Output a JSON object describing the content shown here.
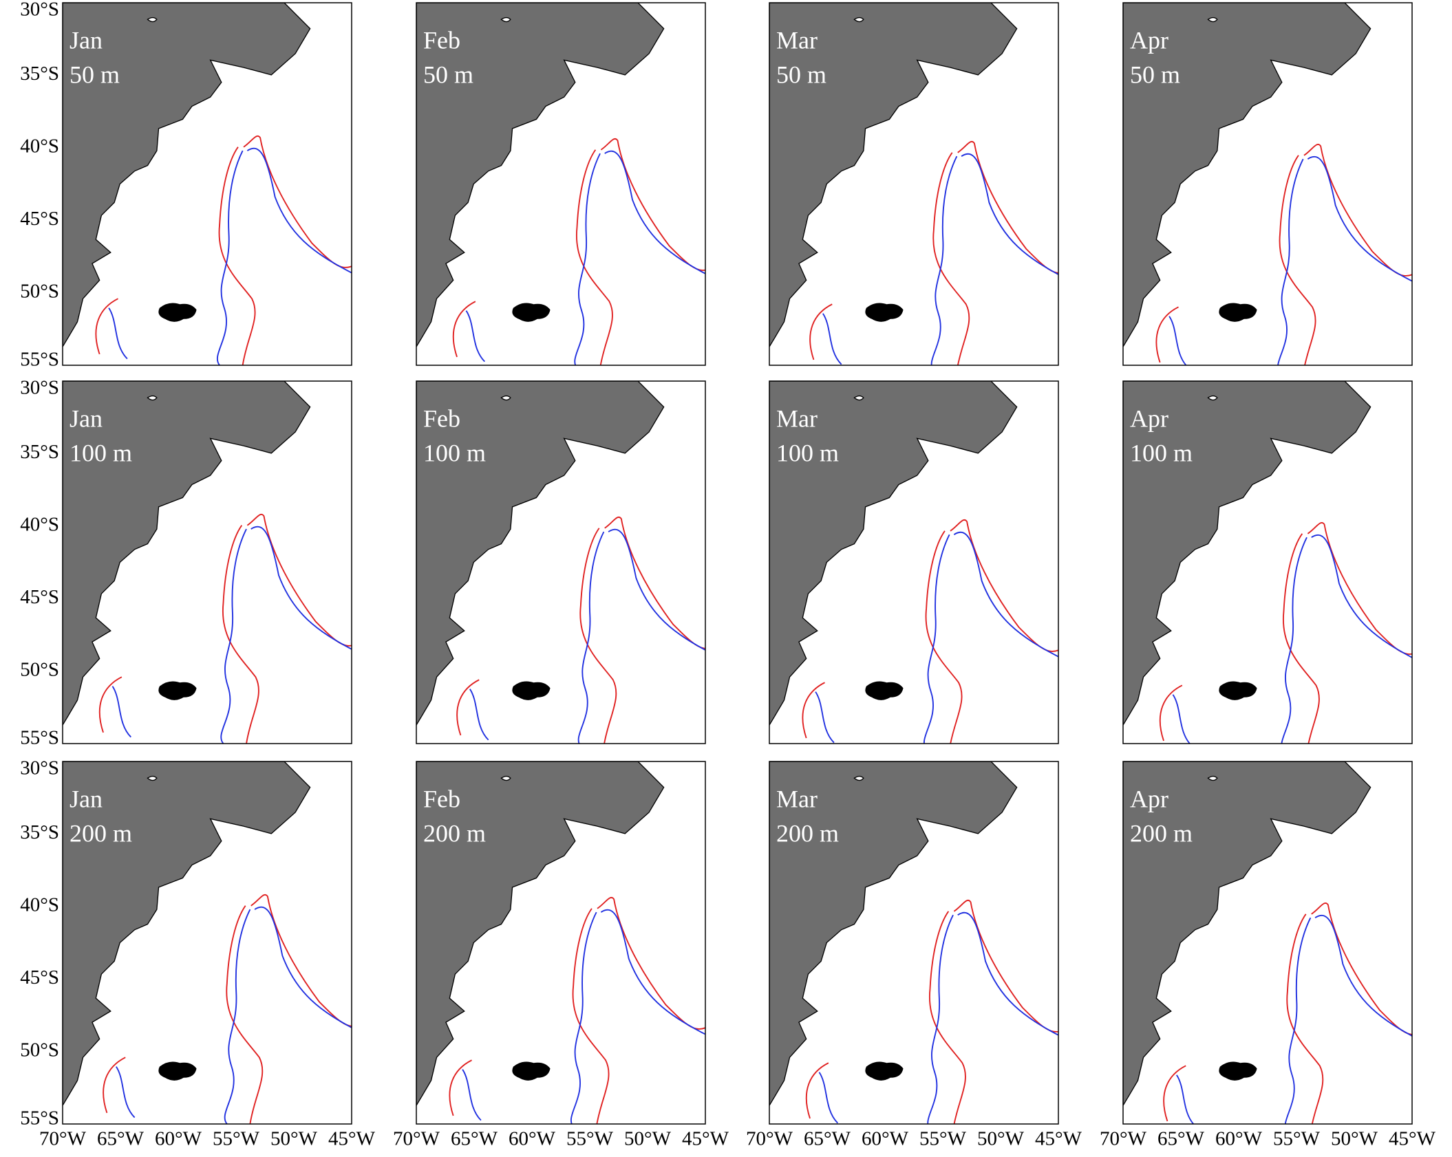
{
  "panels": [
    {
      "month": "Jan",
      "depth": "50 m"
    },
    {
      "month": "Feb",
      "depth": "50 m"
    },
    {
      "month": "Mar",
      "depth": "50 m"
    },
    {
      "month": "Apr",
      "depth": "50 m"
    },
    {
      "month": "Jan",
      "depth": "100 m"
    },
    {
      "month": "Feb",
      "depth": "100 m"
    },
    {
      "month": "Mar",
      "depth": "100 m"
    },
    {
      "month": "Apr",
      "depth": "100 m"
    },
    {
      "month": "Jan",
      "depth": "200 m"
    },
    {
      "month": "Feb",
      "depth": "200 m"
    },
    {
      "month": "Mar",
      "depth": "200 m"
    },
    {
      "month": "Apr",
      "depth": "200 m"
    }
  ],
  "lat_labels": [
    "30°S",
    "35°S",
    "40°S",
    "45°S",
    "50°S",
    "55°S"
  ],
  "lon_labels": [
    "70°W",
    "65°W",
    "60°W",
    "55°W",
    "50°W",
    "45°W"
  ]
}
